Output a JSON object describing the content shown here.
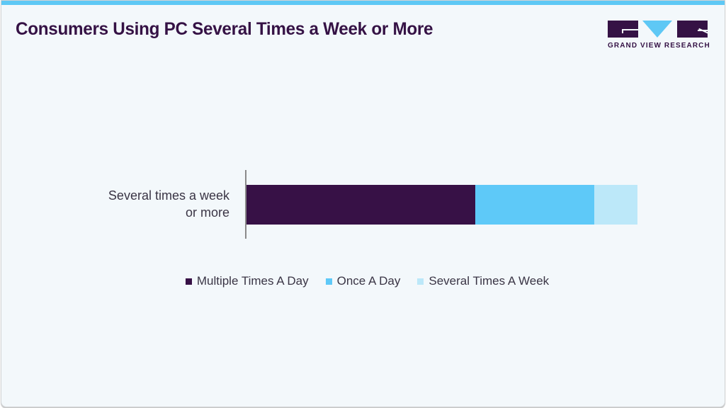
{
  "header": {
    "title": "Consumers Using PC Several Times a Week or More",
    "accent_color": "#5ec8f5"
  },
  "logo": {
    "text": "GRAND VIEW RESEARCH",
    "colors": {
      "dark": "#351245",
      "light": "#5ec8f5"
    }
  },
  "legend": [
    {
      "label": "Multiple Times A Day",
      "color": "#371146"
    },
    {
      "label": "Once A Day",
      "color": "#5ec9f8"
    },
    {
      "label": "Several Times A Week",
      "color": "#bce8f9"
    }
  ],
  "chart_data": {
    "type": "bar",
    "orientation": "horizontal",
    "stacked": true,
    "title": "Consumers Using PC Several Times a Week or More",
    "categories": [
      "Several times a week or more"
    ],
    "category_label_lines": [
      "Several times a week",
      "or more"
    ],
    "series": [
      {
        "name": "Multiple Times A Day",
        "values": [
          58.5
        ],
        "color": "#371146"
      },
      {
        "name": "Once A Day",
        "values": [
          30.4
        ],
        "color": "#5ec9f8"
      },
      {
        "name": "Several Times A Week",
        "values": [
          11.1
        ],
        "color": "#bce8f9"
      }
    ],
    "xlabel": "",
    "ylabel": "",
    "xlim": [
      0,
      100
    ],
    "unit": "%",
    "grid": false,
    "legend_position": "bottom"
  }
}
